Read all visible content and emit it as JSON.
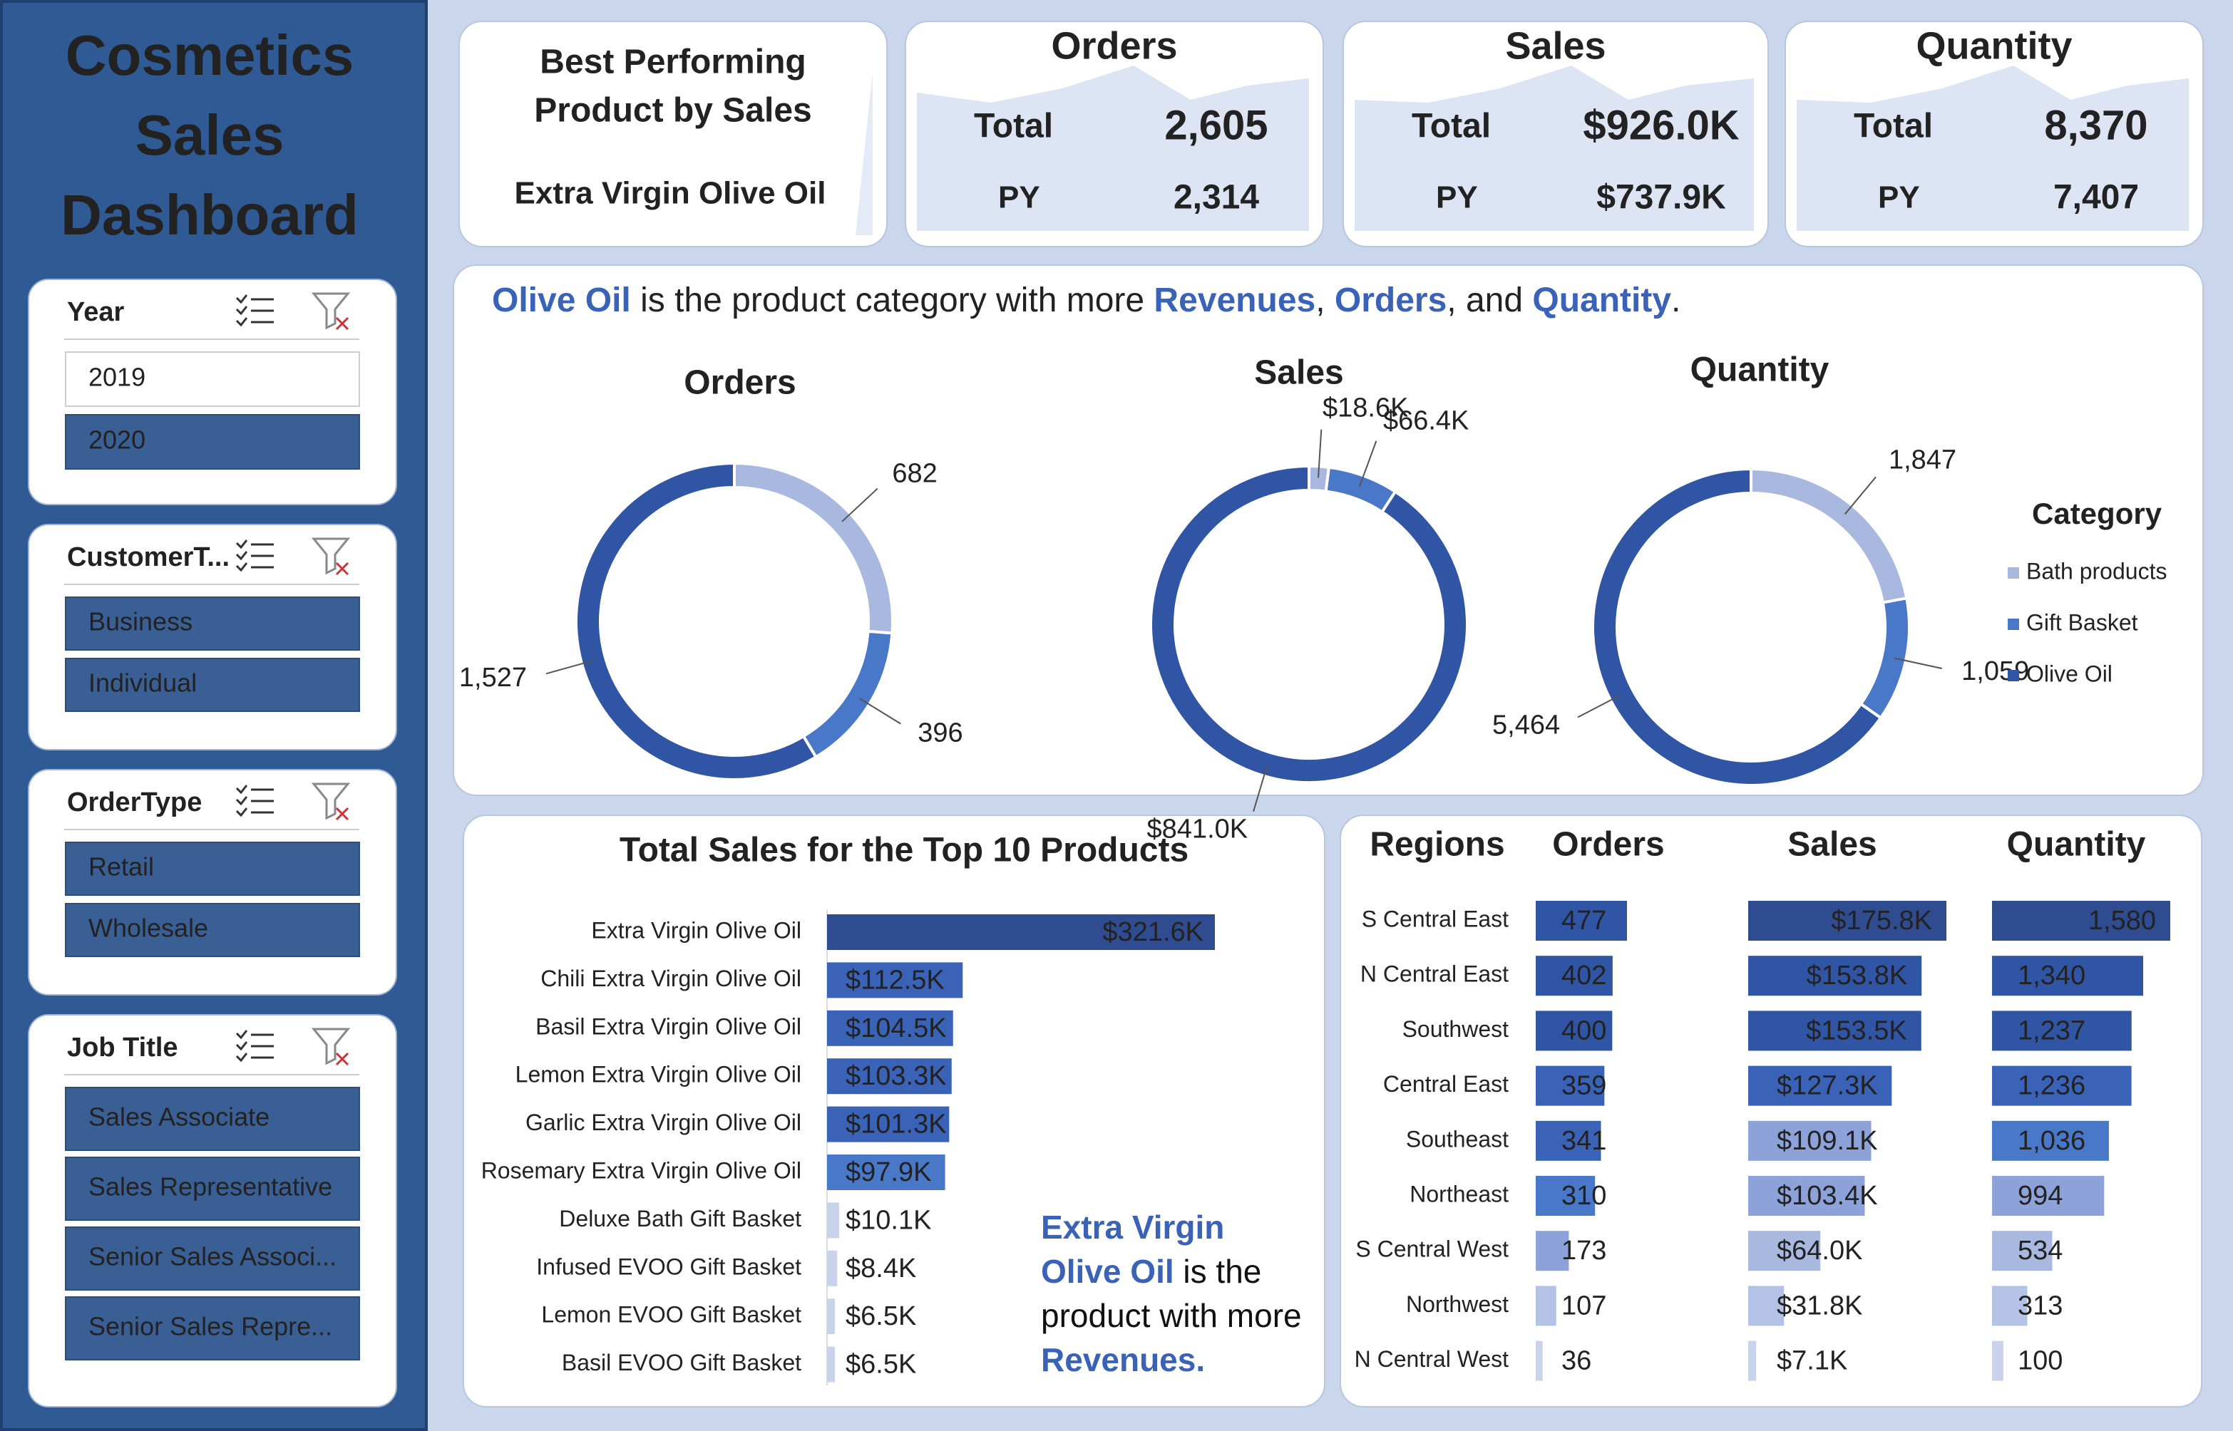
{
  "title_lines": [
    "Cosmetics",
    "Sales",
    "Dashboard"
  ],
  "slicers": [
    {
      "title": "Year",
      "items": [
        "2019",
        "2020"
      ],
      "selected": [
        false,
        true
      ]
    },
    {
      "title": "CustomerT...",
      "items": [
        "Business",
        "Individual"
      ],
      "selected": [
        true,
        true
      ]
    },
    {
      "title": "OrderType",
      "items": [
        "Retail",
        "Wholesale"
      ],
      "selected": [
        true,
        true
      ]
    },
    {
      "title": "Job Title",
      "items": [
        "Sales Associate",
        "Sales Representative",
        "Senior Sales Associ...",
        "Senior Sales Repre..."
      ],
      "selected": [
        true,
        true,
        true,
        true
      ]
    }
  ],
  "best_product": {
    "title_lines": [
      "Best Performing",
      "Product by Sales"
    ],
    "value": "Extra Virgin Olive Oil"
  },
  "kpis": [
    {
      "title": "Orders",
      "total_label": "Total",
      "total": "2,605",
      "py_label": "PY",
      "py": "2,314"
    },
    {
      "title": "Sales",
      "total_label": "Total",
      "total": "$926.0K",
      "py_label": "PY",
      "py": "$737.9K"
    },
    {
      "title": "Quantity",
      "total_label": "Total",
      "total": "8,370",
      "py_label": "PY",
      "py": "7,407"
    }
  ],
  "headline": [
    {
      "text": "Olive Oil",
      "em": true
    },
    {
      "text": " is the product category with more "
    },
    {
      "text": "Revenues",
      "em": true
    },
    {
      "text": ", "
    },
    {
      "text": "Orders",
      "em": true
    },
    {
      "text": ", and "
    },
    {
      "text": "Quantity",
      "em": true
    },
    {
      "text": "."
    }
  ],
  "annotation": [
    {
      "text": "Extra Virgin Olive Oil",
      "em": true
    },
    {
      "text": " is the product with more "
    },
    {
      "text": "Revenues.",
      "em": true
    }
  ],
  "chart_data": [
    {
      "type": "pie",
      "title": "Orders",
      "categories": [
        "Bath products",
        "Gift Basket",
        "Olive Oil"
      ],
      "colors": [
        "#a9b8df",
        "#4a78c8",
        "#2f55a4"
      ],
      "values": [
        682,
        396,
        1527
      ],
      "value_labels": [
        "682",
        "396",
        "1,527"
      ]
    },
    {
      "type": "pie",
      "title": "Sales",
      "categories": [
        "Bath products",
        "Gift Basket",
        "Olive Oil"
      ],
      "colors": [
        "#a9b8df",
        "#4a78c8",
        "#2f55a4"
      ],
      "values": [
        18600,
        66400,
        841000
      ],
      "value_labels": [
        "$18.6K",
        "$66.4K",
        "$841.0K"
      ]
    },
    {
      "type": "pie",
      "title": "Quantity",
      "categories": [
        "Bath products",
        "Gift Basket",
        "Olive Oil"
      ],
      "colors": [
        "#a9b8df",
        "#4a78c8",
        "#2f55a4"
      ],
      "values": [
        1847,
        1059,
        5464
      ],
      "value_labels": [
        "1,847",
        "1,059",
        "5,464"
      ],
      "legend": "right",
      "legend_title": "Category"
    },
    {
      "type": "bar",
      "orientation": "horizontal",
      "title": "Total Sales for the Top 10 Products",
      "categories": [
        "Extra Virgin Olive Oil",
        "Chili Extra Virgin Olive Oil",
        "Basil Extra Virgin Olive Oil",
        "Lemon Extra Virgin Olive Oil",
        "Garlic Extra Virgin Olive Oil",
        "Rosemary Extra Virgin Olive Oil",
        "Deluxe Bath Gift Basket",
        "Infused EVOO Gift Basket",
        "Lemon EVOO Gift Basket",
        "Basil EVOO Gift Basket"
      ],
      "values": [
        321600,
        112500,
        104500,
        103300,
        101300,
        97900,
        10100,
        8400,
        6500,
        6500
      ],
      "value_labels": [
        "$321.6K",
        "$112.5K",
        "$104.5K",
        "$103.3K",
        "$101.3K",
        "$97.9K",
        "$10.1K",
        "$8.4K",
        "$6.5K",
        "$6.5K"
      ],
      "colors": [
        "#2e4c8f",
        "#3a63b8",
        "#3a63b8",
        "#3a63b8",
        "#3a63b8",
        "#4a78c8",
        "#c9d3ec",
        "#c9d3ec",
        "#c9d3ec",
        "#c9d3ec"
      ]
    },
    {
      "type": "bar",
      "orientation": "horizontal",
      "category_label": "Regions",
      "categories": [
        "S Central East",
        "N Central East",
        "Southwest",
        "Central East",
        "Southeast",
        "Northeast",
        "S Central West",
        "Northwest",
        "N Central West"
      ],
      "series": [
        {
          "name": "Orders",
          "values": [
            477,
            402,
            400,
            359,
            341,
            310,
            173,
            107,
            36
          ],
          "colors": [
            "#2f55a4",
            "#2f55a4",
            "#2f55a4",
            "#3a63b8",
            "#3a63b8",
            "#4a78c8",
            "#8da2d8",
            "#b4c2e6",
            "#c9d3ec"
          ]
        },
        {
          "name": "Sales",
          "values": [
            175800,
            153800,
            153500,
            127300,
            109100,
            103400,
            64000,
            31800,
            7100
          ],
          "value_labels": [
            "$175.8K",
            "$153.8K",
            "$153.5K",
            "$127.3K",
            "$109.1K",
            "$103.4K",
            "$64.0K",
            "$31.8K",
            "$7.1K"
          ],
          "colors": [
            "#2e4c8f",
            "#2f55a4",
            "#2f55a4",
            "#3a63b8",
            "#8da2d8",
            "#8da2d8",
            "#a9b8df",
            "#b4c2e6",
            "#c9d3ec"
          ]
        },
        {
          "name": "Quantity",
          "values": [
            1580,
            1340,
            1237,
            1236,
            1036,
            994,
            534,
            313,
            100
          ],
          "value_labels": [
            "1,580",
            "1,340",
            "1,237",
            "1,236",
            "1,036",
            "994",
            "534",
            "313",
            "100"
          ],
          "colors": [
            "#2e4c8f",
            "#2f55a4",
            "#2f55a4",
            "#3a63b8",
            "#4a78c8",
            "#8da2d8",
            "#a9b8df",
            "#b4c2e6",
            "#c9d3ec"
          ]
        }
      ]
    }
  ]
}
